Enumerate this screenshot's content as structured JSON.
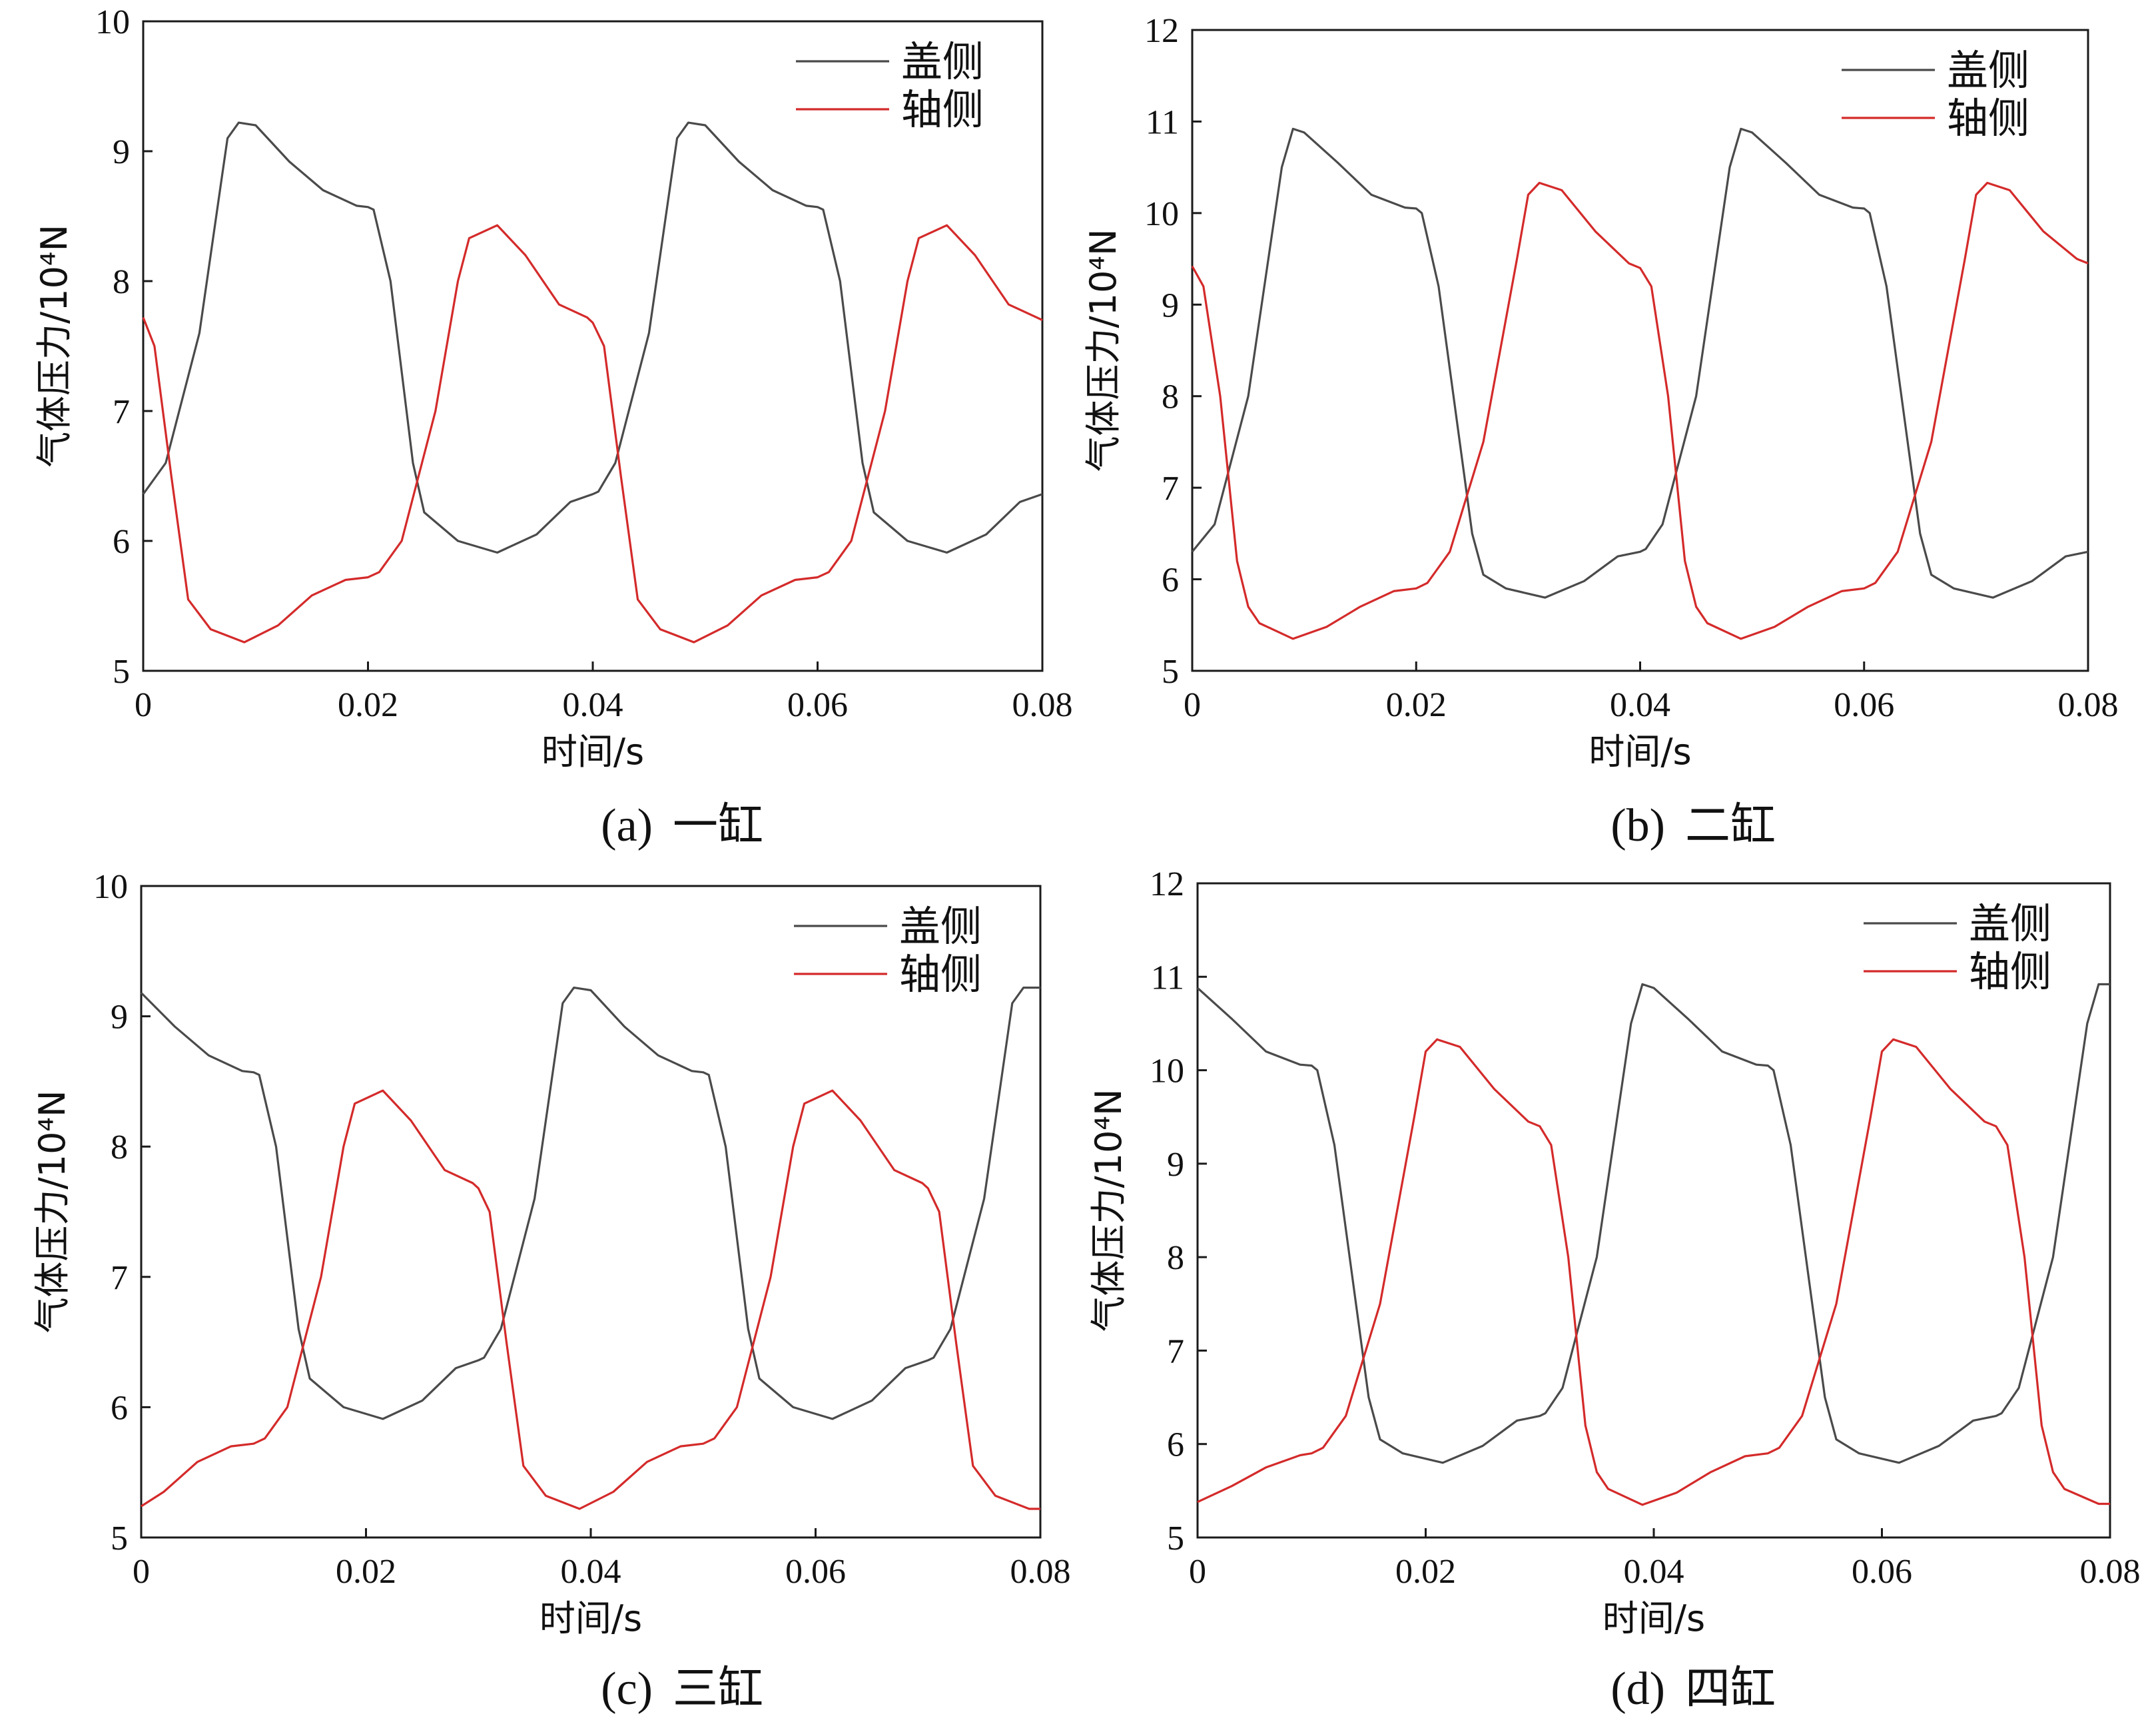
{
  "figure": {
    "panels": [
      {
        "caption_label": "(a)",
        "caption_text": "一缸"
      },
      {
        "caption_label": "(b)",
        "caption_text": "二缸"
      },
      {
        "caption_label": "(c)",
        "caption_text": "三缸"
      },
      {
        "caption_label": "(d)",
        "caption_text": "四缸"
      }
    ]
  },
  "chart_data": [
    {
      "type": "line",
      "title": "",
      "xlabel": "时间/s",
      "ylabel": "气体压力/10⁴N",
      "xlim": [
        0,
        0.08
      ],
      "ylim": [
        5,
        10
      ],
      "xticks": [
        "0",
        "0.02",
        "0.04",
        "0.06",
        "0.08"
      ],
      "yticks": [
        "5",
        "6",
        "7",
        "8",
        "9",
        "10"
      ],
      "legend_position": "top-right",
      "series": [
        {
          "name": "盖侧",
          "color": "#4a4a4a",
          "x": [
            0,
            0.002,
            0.005,
            0.007,
            0.0075,
            0.0085,
            0.01,
            0.013,
            0.016,
            0.019,
            0.02,
            0.0205,
            0.022,
            0.024,
            0.025,
            0.028,
            0.0315,
            0.035,
            0.038,
            0.04,
            0.0405,
            0.042,
            0.045,
            0.047,
            0.0475,
            0.0485,
            0.05,
            0.053,
            0.056,
            0.059,
            0.06,
            0.0605,
            0.062,
            0.064,
            0.065,
            0.068,
            0.0715,
            0.075,
            0.078,
            0.08
          ],
          "y": [
            6.36,
            6.6,
            7.6,
            8.8,
            9.1,
            9.22,
            9.2,
            8.92,
            8.7,
            8.58,
            8.57,
            8.55,
            8.0,
            6.6,
            6.22,
            6.0,
            5.91,
            6.05,
            6.3,
            6.36,
            6.38,
            6.6,
            7.6,
            8.8,
            9.1,
            9.22,
            9.2,
            8.92,
            8.7,
            8.58,
            8.57,
            8.55,
            8.0,
            6.6,
            6.22,
            6.0,
            5.91,
            6.05,
            6.3,
            6.36
          ]
        },
        {
          "name": "轴侧",
          "color": "#d42a2a",
          "x": [
            0,
            0.001,
            0.0025,
            0.004,
            0.006,
            0.009,
            0.012,
            0.015,
            0.018,
            0.02,
            0.021,
            0.023,
            0.026,
            0.028,
            0.029,
            0.0315,
            0.034,
            0.037,
            0.0395,
            0.04,
            0.041,
            0.0425,
            0.044,
            0.046,
            0.049,
            0.052,
            0.055,
            0.058,
            0.06,
            0.061,
            0.063,
            0.066,
            0.068,
            0.069,
            0.0715,
            0.074,
            0.077,
            0.0795,
            0.08
          ],
          "y": [
            7.72,
            7.5,
            6.5,
            5.55,
            5.32,
            5.22,
            5.35,
            5.58,
            5.7,
            5.72,
            5.76,
            6.0,
            7.0,
            8.0,
            8.33,
            8.43,
            8.2,
            7.82,
            7.72,
            7.68,
            7.5,
            6.5,
            5.55,
            5.32,
            5.22,
            5.35,
            5.58,
            5.7,
            5.72,
            5.76,
            6.0,
            7.0,
            8.0,
            8.33,
            8.43,
            8.2,
            7.82,
            7.72,
            7.7
          ]
        }
      ]
    },
    {
      "type": "line",
      "title": "",
      "xlabel": "时间/s",
      "ylabel": "气体压力/10⁴N",
      "xlim": [
        0,
        0.08
      ],
      "ylim": [
        5,
        12
      ],
      "xticks": [
        "0",
        "0.02",
        "0.04",
        "0.06",
        "0.08"
      ],
      "yticks": [
        "5",
        "6",
        "7",
        "8",
        "9",
        "10",
        "11",
        "12"
      ],
      "legend_position": "top-right",
      "series": [
        {
          "name": "盖侧",
          "color": "#4a4a4a",
          "x": [
            0,
            0.002,
            0.005,
            0.008,
            0.009,
            0.01,
            0.013,
            0.016,
            0.019,
            0.02,
            0.0205,
            0.022,
            0.025,
            0.026,
            0.028,
            0.0315,
            0.035,
            0.038,
            0.04,
            0.0405,
            0.042,
            0.045,
            0.048,
            0.049,
            0.05,
            0.053,
            0.056,
            0.059,
            0.06,
            0.0605,
            0.062,
            0.065,
            0.066,
            0.068,
            0.0715,
            0.075,
            0.078,
            0.08
          ],
          "y": [
            6.3,
            6.6,
            8.0,
            10.5,
            10.92,
            10.88,
            10.55,
            10.2,
            10.06,
            10.05,
            10.0,
            9.2,
            6.5,
            6.05,
            5.9,
            5.8,
            5.98,
            6.25,
            6.3,
            6.33,
            6.6,
            8.0,
            10.5,
            10.92,
            10.88,
            10.55,
            10.2,
            10.06,
            10.05,
            10.0,
            9.2,
            6.5,
            6.05,
            5.9,
            5.8,
            5.98,
            6.25,
            6.3
          ]
        },
        {
          "name": "轴侧",
          "color": "#d42a2a",
          "x": [
            0,
            0.001,
            0.0025,
            0.004,
            0.005,
            0.006,
            0.009,
            0.012,
            0.015,
            0.018,
            0.02,
            0.021,
            0.023,
            0.026,
            0.029,
            0.03,
            0.031,
            0.033,
            0.036,
            0.039,
            0.04,
            0.041,
            0.0425,
            0.044,
            0.045,
            0.046,
            0.049,
            0.052,
            0.055,
            0.058,
            0.06,
            0.061,
            0.063,
            0.066,
            0.069,
            0.07,
            0.071,
            0.073,
            0.076,
            0.079,
            0.08
          ],
          "y": [
            9.42,
            9.2,
            8.0,
            6.2,
            5.7,
            5.52,
            5.35,
            5.48,
            5.7,
            5.87,
            5.9,
            5.96,
            6.3,
            7.5,
            9.5,
            10.2,
            10.33,
            10.25,
            9.8,
            9.45,
            9.4,
            9.2,
            8.0,
            6.2,
            5.7,
            5.52,
            5.35,
            5.48,
            5.7,
            5.87,
            5.9,
            5.96,
            6.3,
            7.5,
            9.5,
            10.2,
            10.33,
            10.25,
            9.8,
            9.5,
            9.45
          ]
        }
      ]
    },
    {
      "type": "line",
      "title": "",
      "xlabel": "时间/s",
      "ylabel": "气体压力/10⁴N",
      "xlim": [
        0,
        0.08
      ],
      "ylim": [
        5,
        10
      ],
      "xticks": [
        "0",
        "0.02",
        "0.04",
        "0.06",
        "0.08"
      ],
      "yticks": [
        "5",
        "6",
        "7",
        "8",
        "9",
        "10"
      ],
      "legend_position": "top-right",
      "series": [
        {
          "name": "盖侧",
          "color": "#4a4a4a",
          "x": [
            0,
            0.003,
            0.006,
            0.009,
            0.01,
            0.0105,
            0.012,
            0.014,
            0.015,
            0.018,
            0.0215,
            0.025,
            0.028,
            0.03,
            0.0305,
            0.032,
            0.035,
            0.037,
            0.0375,
            0.0385,
            0.04,
            0.043,
            0.046,
            0.049,
            0.05,
            0.0505,
            0.052,
            0.054,
            0.055,
            0.058,
            0.0615,
            0.065,
            0.068,
            0.07,
            0.0705,
            0.072,
            0.075,
            0.077,
            0.0775,
            0.0785,
            0.08
          ],
          "y": [
            9.18,
            8.92,
            8.7,
            8.58,
            8.57,
            8.55,
            8.0,
            6.6,
            6.22,
            6.0,
            5.91,
            6.05,
            6.3,
            6.36,
            6.38,
            6.6,
            7.6,
            8.8,
            9.1,
            9.22,
            9.2,
            8.92,
            8.7,
            8.58,
            8.57,
            8.55,
            8.0,
            6.6,
            6.22,
            6.0,
            5.91,
            6.05,
            6.3,
            6.36,
            6.38,
            6.6,
            7.6,
            8.8,
            9.1,
            9.22,
            9.22
          ]
        },
        {
          "name": "轴侧",
          "color": "#d42a2a",
          "x": [
            0,
            0.002,
            0.005,
            0.008,
            0.01,
            0.011,
            0.013,
            0.016,
            0.018,
            0.019,
            0.0215,
            0.024,
            0.027,
            0.0295,
            0.03,
            0.031,
            0.0325,
            0.034,
            0.036,
            0.039,
            0.042,
            0.045,
            0.048,
            0.05,
            0.051,
            0.053,
            0.056,
            0.058,
            0.059,
            0.0615,
            0.064,
            0.067,
            0.0695,
            0.07,
            0.071,
            0.0725,
            0.074,
            0.076,
            0.079,
            0.08
          ],
          "y": [
            5.24,
            5.35,
            5.58,
            5.7,
            5.72,
            5.76,
            6.0,
            7.0,
            8.0,
            8.33,
            8.43,
            8.2,
            7.82,
            7.72,
            7.68,
            7.5,
            6.5,
            5.55,
            5.32,
            5.22,
            5.35,
            5.58,
            5.7,
            5.72,
            5.76,
            6.0,
            7.0,
            8.0,
            8.33,
            8.43,
            8.2,
            7.82,
            7.72,
            7.68,
            7.5,
            6.5,
            5.55,
            5.32,
            5.22,
            5.22
          ]
        }
      ]
    },
    {
      "type": "line",
      "title": "",
      "xlabel": "时间/s",
      "ylabel": "气体压力/10⁴N",
      "xlim": [
        0,
        0.08
      ],
      "ylim": [
        5,
        12
      ],
      "xticks": [
        "0",
        "0.02",
        "0.04",
        "0.06",
        "0.08"
      ],
      "yticks": [
        "5",
        "6",
        "7",
        "8",
        "9",
        "10",
        "11",
        "12"
      ],
      "legend_position": "top-right",
      "series": [
        {
          "name": "盖侧",
          "color": "#4a4a4a",
          "x": [
            0,
            0.003,
            0.006,
            0.009,
            0.01,
            0.0105,
            0.012,
            0.015,
            0.016,
            0.018,
            0.0215,
            0.025,
            0.028,
            0.03,
            0.0305,
            0.032,
            0.035,
            0.038,
            0.039,
            0.04,
            0.043,
            0.046,
            0.049,
            0.05,
            0.0505,
            0.052,
            0.055,
            0.056,
            0.058,
            0.0615,
            0.065,
            0.068,
            0.07,
            0.0705,
            0.072,
            0.075,
            0.078,
            0.079,
            0.08
          ],
          "y": [
            10.88,
            10.55,
            10.2,
            10.06,
            10.05,
            10.0,
            9.2,
            6.5,
            6.05,
            5.9,
            5.8,
            5.98,
            6.25,
            6.3,
            6.33,
            6.6,
            8.0,
            10.5,
            10.92,
            10.88,
            10.55,
            10.2,
            10.06,
            10.05,
            10.0,
            9.2,
            6.5,
            6.05,
            5.9,
            5.8,
            5.98,
            6.25,
            6.3,
            6.33,
            6.6,
            8.0,
            10.5,
            10.92,
            10.92
          ]
        },
        {
          "name": "轴侧",
          "color": "#d42a2a",
          "x": [
            0,
            0.003,
            0.006,
            0.009,
            0.01,
            0.011,
            0.013,
            0.016,
            0.019,
            0.02,
            0.021,
            0.023,
            0.026,
            0.029,
            0.03,
            0.031,
            0.0325,
            0.034,
            0.035,
            0.036,
            0.039,
            0.042,
            0.045,
            0.048,
            0.05,
            0.051,
            0.053,
            0.056,
            0.059,
            0.06,
            0.061,
            0.063,
            0.066,
            0.069,
            0.07,
            0.071,
            0.0725,
            0.074,
            0.075,
            0.076,
            0.079,
            0.08
          ],
          "y": [
            5.38,
            5.55,
            5.75,
            5.88,
            5.9,
            5.96,
            6.3,
            7.5,
            9.5,
            10.2,
            10.33,
            10.25,
            9.8,
            9.45,
            9.4,
            9.2,
            8.0,
            6.2,
            5.7,
            5.52,
            5.35,
            5.48,
            5.7,
            5.87,
            5.9,
            5.96,
            6.3,
            7.5,
            9.5,
            10.2,
            10.33,
            10.25,
            9.8,
            9.45,
            9.4,
            9.2,
            8.0,
            6.2,
            5.7,
            5.52,
            5.36,
            5.36
          ]
        }
      ]
    }
  ]
}
